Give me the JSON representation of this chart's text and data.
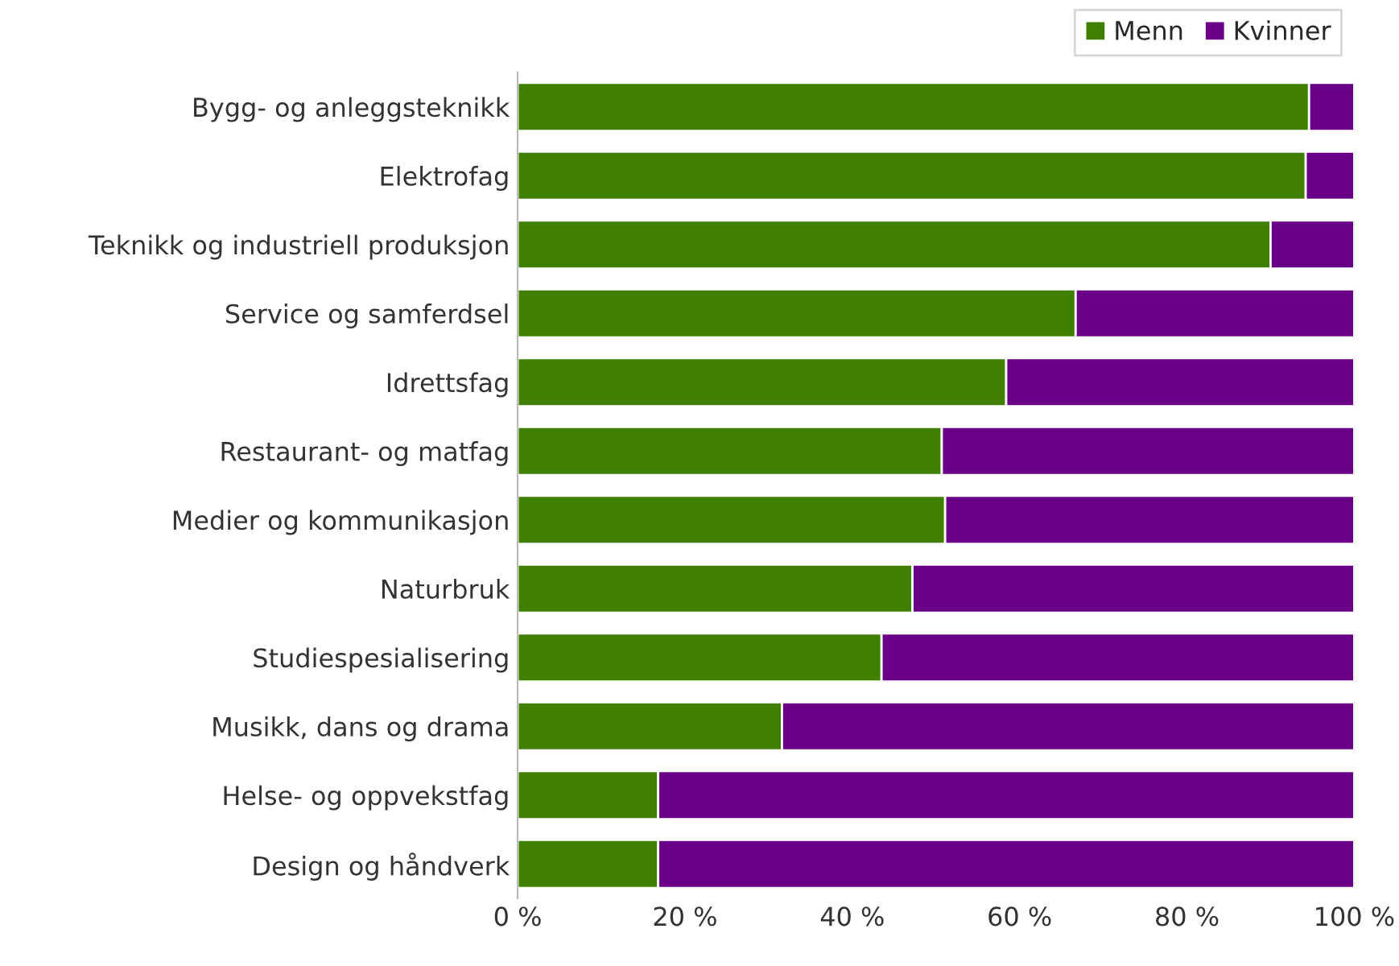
{
  "chart_data": {
    "type": "bar",
    "orientation": "horizontal",
    "stacked": true,
    "categories": [
      "Bygg- og anleggsteknikk",
      "Elektrofag",
      "Teknikk og industriell produksjon",
      "Service og samferdsel",
      "Idrettsfag",
      "Restaurant- og matfag",
      "Medier og kommunikasjon",
      "Naturbruk",
      "Studiespesialisering",
      "Musikk, dans og drama",
      "Helse- og oppvekstfag",
      "Design og håndverk"
    ],
    "series": [
      {
        "name": "Menn",
        "color": "#3f8000",
        "values": [
          94.6,
          94.2,
          90.0,
          66.7,
          58.4,
          50.7,
          51.1,
          47.2,
          43.5,
          31.6,
          16.8,
          16.8
        ]
      },
      {
        "name": "Kvinner",
        "color": "#6a0087",
        "values": [
          5.4,
          5.8,
          10.0,
          33.3,
          41.6,
          49.3,
          48.9,
          52.8,
          56.5,
          68.4,
          83.2,
          83.2
        ]
      }
    ],
    "xlim": [
      0,
      100
    ],
    "xticks": [
      {
        "value": 0,
        "label": "0 %"
      },
      {
        "value": 20,
        "label": "20 %"
      },
      {
        "value": 40,
        "label": "40 %"
      },
      {
        "value": 60,
        "label": "60 %"
      },
      {
        "value": 80,
        "label": "80 %"
      },
      {
        "value": 100,
        "label": "100 %"
      }
    ],
    "legend": "top right",
    "grid": false
  }
}
